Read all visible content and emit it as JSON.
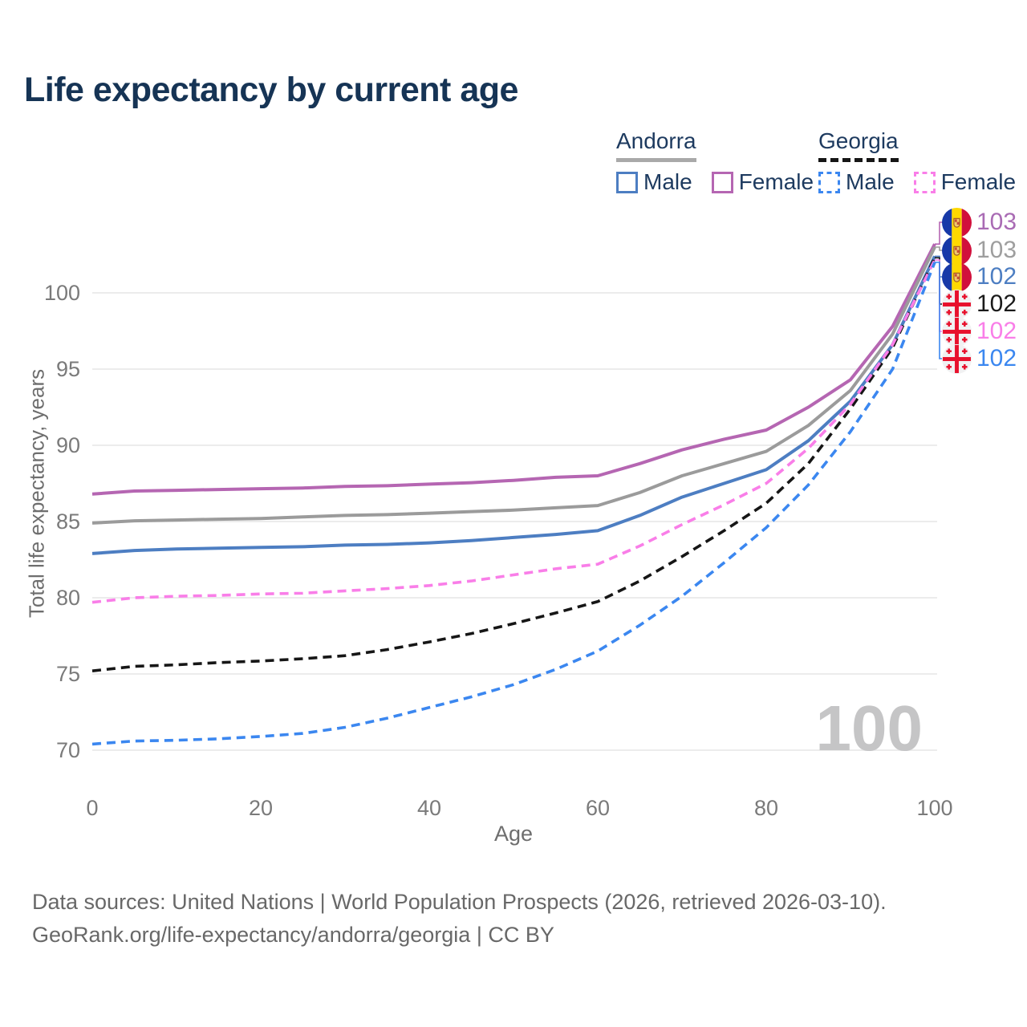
{
  "title": "Life expectancy by current age",
  "legend": {
    "andorra": {
      "label": "Andorra",
      "line_style": "solid",
      "underline_color": "#a9a9a9",
      "male_label": "Male",
      "male_color": "#4d7ec2",
      "female_label": "Female",
      "female_color": "#b566b2"
    },
    "georgia": {
      "label": "Georgia",
      "line_style": "dashed",
      "underline_color": "#161616",
      "male_label": "Male",
      "male_color": "#3b87f0",
      "female_label": "Female",
      "female_color": "#f97ee8"
    }
  },
  "watermark_age": "100",
  "axes": {
    "x_title": "Age",
    "y_title": "Total life expectancy, years",
    "tick_color": "#7a7a7a",
    "grid_color": "#ececec"
  },
  "chart_data": {
    "type": "line",
    "title": "Life expectancy by current age",
    "xlabel": "Age",
    "ylabel": "Total life expectancy, years",
    "xlim": [
      0,
      100
    ],
    "ylim": [
      70,
      103.5
    ],
    "x_ticks": [
      0,
      20,
      40,
      60,
      80,
      100
    ],
    "y_ticks": [
      70,
      75,
      80,
      85,
      90,
      95,
      100
    ],
    "grid": "horizontal",
    "legend_position": "top-right",
    "ages": [
      0,
      5,
      10,
      15,
      20,
      25,
      30,
      35,
      40,
      45,
      50,
      55,
      60,
      65,
      70,
      75,
      80,
      85,
      90,
      95,
      100
    ],
    "series": [
      {
        "name": "Andorra Female",
        "country": "Andorra",
        "sex": "Female",
        "color": "#b566b2",
        "dash": "solid",
        "flag": "andorra",
        "end_label": "103",
        "end_label_color": "#a96bb4",
        "values": [
          86.8,
          87.0,
          87.05,
          87.1,
          87.15,
          87.2,
          87.3,
          87.35,
          87.45,
          87.55,
          87.7,
          87.9,
          88.0,
          88.8,
          89.7,
          90.4,
          91.0,
          92.5,
          94.3,
          97.8,
          103.2
        ]
      },
      {
        "name": "Andorra Both sexes",
        "country": "Andorra",
        "sex": "Both",
        "color": "#9b9b9b",
        "dash": "solid",
        "flag": "andorra",
        "end_label": "103",
        "end_label_color": "#9e9e9e",
        "values": [
          84.9,
          85.05,
          85.1,
          85.15,
          85.2,
          85.3,
          85.4,
          85.45,
          85.55,
          85.65,
          85.75,
          85.9,
          86.05,
          86.9,
          88.0,
          88.8,
          89.6,
          91.3,
          93.6,
          97.3,
          103.0
        ]
      },
      {
        "name": "Andorra Male",
        "country": "Andorra",
        "sex": "Male",
        "color": "#4d7ec2",
        "dash": "solid",
        "flag": "andorra",
        "end_label": "102",
        "end_label_color": "#4d7ec2",
        "values": [
          82.9,
          83.1,
          83.2,
          83.25,
          83.3,
          83.35,
          83.45,
          83.5,
          83.6,
          83.75,
          83.95,
          84.15,
          84.4,
          85.4,
          86.6,
          87.5,
          88.4,
          90.3,
          92.9,
          96.6,
          102.4
        ]
      },
      {
        "name": "Georgia Both sexes",
        "country": "Georgia",
        "sex": "Both",
        "color": "#161616",
        "dash": "dashed",
        "flag": "georgia",
        "end_label": "102",
        "end_label_color": "#1a1a1a",
        "values": [
          75.2,
          75.5,
          75.6,
          75.75,
          75.85,
          76.0,
          76.2,
          76.6,
          77.1,
          77.65,
          78.3,
          79.0,
          79.75,
          81.1,
          82.7,
          84.4,
          86.2,
          88.8,
          92.4,
          96.4,
          102.3
        ]
      },
      {
        "name": "Georgia Female",
        "country": "Georgia",
        "sex": "Female",
        "color": "#f97ee8",
        "dash": "dashed",
        "flag": "georgia",
        "end_label": "102",
        "end_label_color": "#f97ee8",
        "values": [
          79.7,
          80.0,
          80.1,
          80.15,
          80.25,
          80.3,
          80.45,
          80.6,
          80.8,
          81.1,
          81.5,
          81.9,
          82.2,
          83.4,
          84.8,
          86.1,
          87.5,
          89.8,
          92.7,
          96.6,
          102.15
        ]
      },
      {
        "name": "Georgia Male",
        "country": "Georgia",
        "sex": "Male",
        "color": "#3b87f0",
        "dash": "dashed",
        "flag": "georgia",
        "end_label": "102",
        "end_label_color": "#3b87f0",
        "values": [
          70.4,
          70.6,
          70.65,
          70.75,
          70.9,
          71.1,
          71.5,
          72.1,
          72.8,
          73.5,
          74.3,
          75.3,
          76.5,
          78.2,
          80.1,
          82.3,
          84.6,
          87.4,
          90.9,
          95.0,
          102.0
        ]
      }
    ]
  },
  "footer": {
    "line1": "Data sources: United Nations | World Population Prospects (2026, retrieved 2026-03-10).",
    "line2": "GeoRank.org/life-expectancy/andorra/georgia | CC BY"
  }
}
